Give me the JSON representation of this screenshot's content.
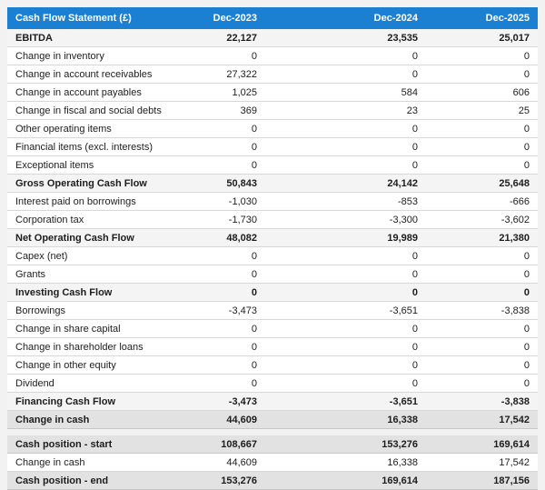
{
  "colors": {
    "header_bg": "#1b80d2",
    "header_text": "#ffffff",
    "subtotal_row_bg": "#f4f4f4",
    "total_row_bg": "#e2e2e2",
    "page_bg": "#f2f2f2"
  },
  "table": {
    "header": {
      "label": "Cash Flow Statement (£)",
      "columns": [
        "Dec-2023",
        "Dec-2024",
        "Dec-2025"
      ]
    },
    "rows": [
      {
        "label": "EBITDA",
        "values": [
          "22,127",
          "23,535",
          "25,017"
        ],
        "emphasis": "subtotal"
      },
      {
        "label": "Change in inventory",
        "values": [
          "0",
          "0",
          "0"
        ],
        "emphasis": "normal"
      },
      {
        "label": "Change in account receivables",
        "values": [
          "27,322",
          "0",
          "0"
        ],
        "emphasis": "normal"
      },
      {
        "label": "Change in account payables",
        "values": [
          "1,025",
          "584",
          "606"
        ],
        "emphasis": "normal"
      },
      {
        "label": "Change in fiscal and social debts",
        "values": [
          "369",
          "23",
          "25"
        ],
        "emphasis": "normal"
      },
      {
        "label": "Other operating items",
        "values": [
          "0",
          "0",
          "0"
        ],
        "emphasis": "normal"
      },
      {
        "label": "Financial items (excl. interests)",
        "values": [
          "0",
          "0",
          "0"
        ],
        "emphasis": "normal"
      },
      {
        "label": "Exceptional items",
        "values": [
          "0",
          "0",
          "0"
        ],
        "emphasis": "normal"
      },
      {
        "label": "Gross Operating Cash Flow",
        "values": [
          "50,843",
          "24,142",
          "25,648"
        ],
        "emphasis": "subtotal"
      },
      {
        "label": "Interest paid on borrowings",
        "values": [
          "-1,030",
          "-853",
          "-666"
        ],
        "emphasis": "normal"
      },
      {
        "label": "Corporation tax",
        "values": [
          "-1,730",
          "-3,300",
          "-3,602"
        ],
        "emphasis": "normal"
      },
      {
        "label": "Net Operating Cash Flow",
        "values": [
          "48,082",
          "19,989",
          "21,380"
        ],
        "emphasis": "subtotal"
      },
      {
        "label": "Capex (net)",
        "values": [
          "0",
          "0",
          "0"
        ],
        "emphasis": "normal"
      },
      {
        "label": "Grants",
        "values": [
          "0",
          "0",
          "0"
        ],
        "emphasis": "normal"
      },
      {
        "label": "Investing Cash Flow",
        "values": [
          "0",
          "0",
          "0"
        ],
        "emphasis": "subtotal"
      },
      {
        "label": "Borrowings",
        "values": [
          "-3,473",
          "-3,651",
          "-3,838"
        ],
        "emphasis": "normal"
      },
      {
        "label": "Change in share capital",
        "values": [
          "0",
          "0",
          "0"
        ],
        "emphasis": "normal"
      },
      {
        "label": "Change in shareholder loans",
        "values": [
          "0",
          "0",
          "0"
        ],
        "emphasis": "normal"
      },
      {
        "label": "Change in other equity",
        "values": [
          "0",
          "0",
          "0"
        ],
        "emphasis": "normal"
      },
      {
        "label": "Dividend",
        "values": [
          "0",
          "0",
          "0"
        ],
        "emphasis": "normal"
      },
      {
        "label": "Financing Cash Flow",
        "values": [
          "-3,473",
          "-3,651",
          "-3,838"
        ],
        "emphasis": "subtotal"
      },
      {
        "label": "Change in cash",
        "values": [
          "44,609",
          "16,338",
          "17,542"
        ],
        "emphasis": "total"
      }
    ],
    "summary_rows": [
      {
        "label": "Cash position - start",
        "values": [
          "108,667",
          "153,276",
          "169,614"
        ],
        "emphasis": "total"
      },
      {
        "label": "Change in cash",
        "values": [
          "44,609",
          "16,338",
          "17,542"
        ],
        "emphasis": "normal"
      },
      {
        "label": "Cash position - end",
        "values": [
          "153,276",
          "169,614",
          "187,156"
        ],
        "emphasis": "total"
      }
    ]
  }
}
